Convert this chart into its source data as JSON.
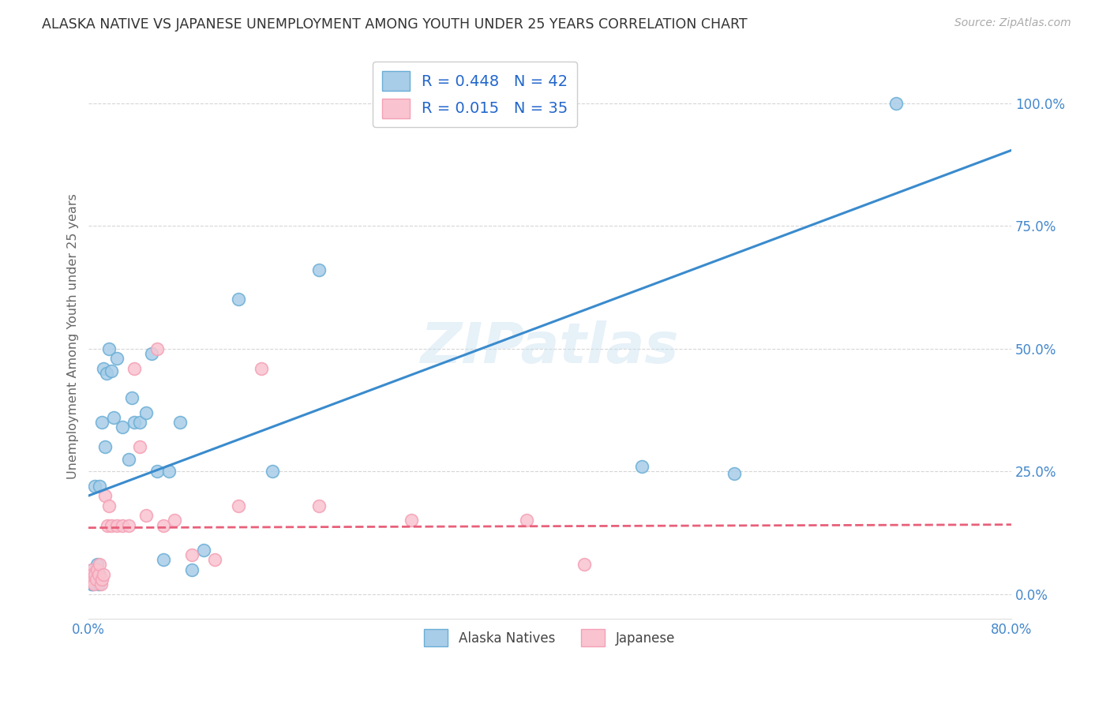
{
  "title": "ALASKA NATIVE VS JAPANESE UNEMPLOYMENT AMONG YOUTH UNDER 25 YEARS CORRELATION CHART",
  "source": "Source: ZipAtlas.com",
  "ylabel": "Unemployment Among Youth under 25 years",
  "xlabel": "",
  "xlim": [
    0.0,
    0.8
  ],
  "ylim": [
    -0.05,
    1.1
  ],
  "yticks": [
    0.0,
    0.25,
    0.5,
    0.75,
    1.0
  ],
  "ytick_labels": [
    "0.0%",
    "25.0%",
    "50.0%",
    "75.0%",
    "100.0%"
  ],
  "xticks": [
    0.0,
    0.1,
    0.2,
    0.3,
    0.4,
    0.5,
    0.6,
    0.7,
    0.8
  ],
  "alaska_color": "#a8cde8",
  "japanese_color": "#f9c4d0",
  "alaska_edge": "#6aaed6",
  "japanese_edge": "#f4a0b5",
  "trendline_alaska_color": "#3a8bcd",
  "trendline_japanese_color": "#e8607a",
  "R_alaska": 0.448,
  "N_alaska": 42,
  "R_japanese": 0.015,
  "N_japanese": 35,
  "legend_label_alaska": "Alaska Natives",
  "legend_label_japanese": "Japanese",
  "watermark": "ZIPatlas",
  "alaska_x": [
    0.002,
    0.003,
    0.003,
    0.004,
    0.004,
    0.004,
    0.005,
    0.005,
    0.006,
    0.006,
    0.007,
    0.008,
    0.009,
    0.01,
    0.01,
    0.012,
    0.013,
    0.015,
    0.016,
    0.018,
    0.02,
    0.022,
    0.025,
    0.03,
    0.035,
    0.038,
    0.04,
    0.045,
    0.05,
    0.055,
    0.06,
    0.065,
    0.07,
    0.08,
    0.09,
    0.1,
    0.13,
    0.16,
    0.2,
    0.48,
    0.56,
    0.7
  ],
  "alaska_y": [
    0.04,
    0.03,
    0.02,
    0.05,
    0.03,
    0.02,
    0.04,
    0.03,
    0.22,
    0.04,
    0.03,
    0.06,
    0.02,
    0.22,
    0.04,
    0.35,
    0.46,
    0.3,
    0.45,
    0.5,
    0.455,
    0.36,
    0.48,
    0.34,
    0.275,
    0.4,
    0.35,
    0.35,
    0.37,
    0.49,
    0.25,
    0.07,
    0.25,
    0.35,
    0.05,
    0.09,
    0.6,
    0.25,
    0.66,
    0.26,
    0.245,
    1.0
  ],
  "japanese_x": [
    0.002,
    0.003,
    0.003,
    0.004,
    0.005,
    0.005,
    0.006,
    0.007,
    0.008,
    0.009,
    0.01,
    0.011,
    0.012,
    0.013,
    0.015,
    0.017,
    0.018,
    0.02,
    0.025,
    0.03,
    0.035,
    0.04,
    0.045,
    0.05,
    0.06,
    0.065,
    0.075,
    0.09,
    0.11,
    0.13,
    0.15,
    0.2,
    0.28,
    0.38,
    0.43
  ],
  "japanese_y": [
    0.04,
    0.05,
    0.03,
    0.04,
    0.03,
    0.02,
    0.04,
    0.03,
    0.05,
    0.04,
    0.06,
    0.02,
    0.03,
    0.04,
    0.2,
    0.14,
    0.18,
    0.14,
    0.14,
    0.14,
    0.14,
    0.46,
    0.3,
    0.16,
    0.5,
    0.14,
    0.15,
    0.08,
    0.07,
    0.18,
    0.46,
    0.18,
    0.15,
    0.15,
    0.06
  ],
  "background_color": "#ffffff",
  "grid_color": "#cccccc",
  "trendline_alaska_intercept": 0.2,
  "trendline_alaska_slope": 0.88,
  "trendline_japanese_intercept": 0.135,
  "trendline_japanese_slope": 0.008
}
